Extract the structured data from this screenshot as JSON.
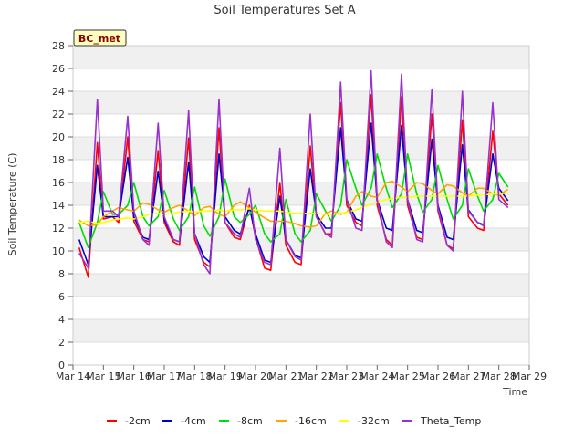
{
  "chart_data": {
    "type": "line",
    "title": "Soil Temperatures Set A",
    "xlabel": "Time",
    "ylabel": "Soil Temperature (C)",
    "badge": "BC_met",
    "ylim": [
      0,
      28
    ],
    "yticks": [
      0,
      2,
      4,
      6,
      8,
      10,
      12,
      14,
      16,
      18,
      20,
      22,
      24,
      26,
      28
    ],
    "xlim": [
      14,
      29
    ],
    "xticks": [
      14,
      15,
      16,
      17,
      18,
      19,
      20,
      21,
      22,
      23,
      24,
      25,
      26,
      27,
      28,
      29
    ],
    "xtick_labels": [
      "Mar 14",
      "Mar 15",
      "Mar 16",
      "Mar 17",
      "Mar 18",
      "Mar 19",
      "Mar 20",
      "Mar 21",
      "Mar 22",
      "Mar 23",
      "Mar 24",
      "Mar 25",
      "Mar 26",
      "Mar 27",
      "Mar 28",
      "Mar 29"
    ],
    "grid": true,
    "legend_position": "bottom",
    "series": [
      {
        "name": "-2cm",
        "color": "#ff0000",
        "x": [
          14.2,
          14.5,
          14.8,
          15.0,
          15.3,
          15.5,
          15.8,
          16.0,
          16.3,
          16.5,
          16.8,
          17.0,
          17.3,
          17.5,
          17.8,
          18.0,
          18.3,
          18.5,
          18.8,
          19.0,
          19.3,
          19.5,
          19.8,
          20.0,
          20.3,
          20.5,
          20.8,
          21.0,
          21.3,
          21.5,
          21.8,
          22.0,
          22.3,
          22.5,
          22.8,
          23.0,
          23.3,
          23.5,
          23.8,
          24.0,
          24.3,
          24.5,
          24.8,
          25.0,
          25.3,
          25.5,
          25.8,
          26.0,
          26.3,
          26.5,
          26.8,
          27.0,
          27.3,
          27.5,
          27.8,
          28.0,
          28.3
        ],
        "y": [
          10.3,
          7.7,
          19.5,
          12.8,
          13.0,
          12.5,
          20.0,
          12.6,
          11.0,
          10.8,
          18.8,
          12.5,
          10.8,
          10.5,
          19.9,
          11.0,
          9.0,
          8.6,
          20.8,
          12.5,
          11.2,
          11.0,
          14.0,
          11.2,
          8.5,
          8.3,
          16.0,
          10.5,
          9.0,
          8.8,
          19.2,
          13.0,
          11.5,
          11.5,
          23.0,
          14.0,
          12.5,
          12.2,
          23.7,
          14.0,
          11.0,
          10.5,
          23.5,
          14.0,
          11.2,
          11.0,
          22.0,
          13.5,
          10.5,
          10.2,
          21.5,
          13.0,
          12.0,
          11.8,
          20.5,
          15.0,
          14.0
        ]
      },
      {
        "name": "-4cm",
        "color": "#0000cc",
        "x": [
          14.2,
          14.5,
          14.8,
          15.0,
          15.3,
          15.5,
          15.8,
          16.0,
          16.3,
          16.5,
          16.8,
          17.0,
          17.3,
          17.5,
          17.8,
          18.0,
          18.3,
          18.5,
          18.8,
          19.0,
          19.3,
          19.5,
          19.8,
          20.0,
          20.3,
          20.5,
          20.8,
          21.0,
          21.3,
          21.5,
          21.8,
          22.0,
          22.3,
          22.5,
          22.8,
          23.0,
          23.3,
          23.5,
          23.8,
          24.0,
          24.3,
          24.5,
          24.8,
          25.0,
          25.3,
          25.5,
          25.8,
          26.0,
          26.3,
          26.5,
          26.8,
          27.0,
          27.3,
          27.5,
          27.8,
          28.0,
          28.3
        ],
        "y": [
          11.0,
          8.8,
          17.5,
          13.0,
          13.0,
          13.0,
          18.2,
          13.0,
          11.2,
          11.0,
          17.0,
          12.8,
          11.0,
          10.8,
          17.8,
          11.5,
          9.5,
          9.0,
          18.5,
          13.0,
          11.8,
          11.5,
          13.8,
          11.5,
          9.2,
          9.0,
          14.8,
          11.0,
          9.6,
          9.4,
          17.2,
          13.2,
          12.0,
          12.0,
          20.8,
          14.5,
          12.8,
          12.6,
          21.2,
          14.5,
          12.0,
          11.8,
          21.0,
          14.5,
          11.8,
          11.6,
          19.8,
          14.0,
          11.2,
          11.0,
          19.3,
          13.6,
          12.5,
          12.3,
          18.5,
          15.5,
          14.4
        ]
      },
      {
        "name": "-8cm",
        "color": "#00dd00",
        "x": [
          14.2,
          14.5,
          14.8,
          15.0,
          15.3,
          15.5,
          15.8,
          16.0,
          16.3,
          16.5,
          16.8,
          17.0,
          17.3,
          17.5,
          17.8,
          18.0,
          18.3,
          18.5,
          18.8,
          19.0,
          19.3,
          19.5,
          19.8,
          20.0,
          20.3,
          20.5,
          20.8,
          21.0,
          21.3,
          21.5,
          21.8,
          22.0,
          22.3,
          22.5,
          22.8,
          23.0,
          23.3,
          23.5,
          23.8,
          24.0,
          24.3,
          24.5,
          24.8,
          25.0,
          25.3,
          25.5,
          25.8,
          26.0,
          26.3,
          26.5,
          26.8,
          27.0,
          27.3,
          27.5,
          27.8,
          28.0,
          28.3
        ],
        "y": [
          12.5,
          10.3,
          12.5,
          15.2,
          13.2,
          13.2,
          14.0,
          16.0,
          13.0,
          12.2,
          13.0,
          15.3,
          12.8,
          11.8,
          13.0,
          15.6,
          12.2,
          11.3,
          13.0,
          16.3,
          13.0,
          12.5,
          13.2,
          14.0,
          11.5,
          10.8,
          11.5,
          14.5,
          11.5,
          10.8,
          11.8,
          15.0,
          13.5,
          12.6,
          14.0,
          18.0,
          15.5,
          14.0,
          15.5,
          18.5,
          15.5,
          13.8,
          15.0,
          18.5,
          15.0,
          13.4,
          14.5,
          17.5,
          14.5,
          12.8,
          14.0,
          17.2,
          14.8,
          13.5,
          14.5,
          16.8,
          15.6
        ]
      },
      {
        "name": "-16cm",
        "color": "#ffa500",
        "x": [
          14.2,
          14.5,
          14.8,
          15.0,
          15.3,
          15.5,
          15.8,
          16.0,
          16.3,
          16.5,
          16.8,
          17.0,
          17.3,
          17.5,
          17.8,
          18.0,
          18.3,
          18.5,
          18.8,
          19.0,
          19.3,
          19.5,
          19.8,
          20.0,
          20.3,
          20.5,
          20.8,
          21.0,
          21.3,
          21.5,
          21.8,
          22.0,
          22.3,
          22.5,
          22.8,
          23.0,
          23.3,
          23.5,
          23.8,
          24.0,
          24.3,
          24.5,
          24.8,
          25.0,
          25.3,
          25.5,
          25.8,
          26.0,
          26.3,
          26.5,
          26.8,
          27.0,
          27.3,
          27.5,
          27.8,
          28.0,
          28.3
        ],
        "y": [
          12.7,
          12.2,
          12.3,
          13.0,
          13.5,
          13.8,
          13.6,
          13.5,
          14.2,
          14.1,
          13.6,
          13.4,
          13.8,
          14.0,
          13.5,
          13.1,
          13.8,
          13.9,
          13.2,
          13.0,
          14.0,
          14.3,
          13.8,
          13.4,
          12.9,
          12.6,
          12.6,
          12.6,
          12.4,
          12.2,
          12.1,
          12.2,
          13.3,
          13.5,
          13.2,
          13.4,
          14.8,
          15.2,
          14.8,
          14.7,
          16.0,
          16.1,
          15.6,
          15.2,
          16.0,
          15.9,
          15.3,
          15.0,
          15.8,
          15.7,
          15.1,
          14.8,
          15.5,
          15.5,
          15.0,
          14.9,
          15.4
        ]
      },
      {
        "name": "-32cm",
        "color": "#ffff00",
        "x": [
          14.2,
          14.5,
          14.8,
          15.0,
          15.3,
          15.5,
          15.8,
          16.0,
          16.3,
          16.5,
          16.8,
          17.0,
          17.3,
          17.5,
          17.8,
          18.0,
          18.3,
          18.5,
          18.8,
          19.0,
          19.3,
          19.5,
          19.8,
          20.0,
          20.3,
          20.5,
          20.8,
          21.0,
          21.3,
          21.5,
          21.8,
          22.0,
          22.3,
          22.5,
          22.8,
          23.0,
          23.3,
          23.5,
          23.8,
          24.0,
          24.3,
          24.5,
          24.8,
          25.0,
          25.3,
          25.5,
          25.8,
          26.0,
          26.3,
          26.5,
          26.8,
          27.0,
          27.3,
          27.5,
          27.8,
          28.0,
          28.3
        ],
        "y": [
          12.5,
          12.6,
          12.4,
          12.5,
          12.7,
          12.8,
          12.9,
          12.8,
          13.0,
          13.2,
          13.3,
          13.2,
          13.3,
          13.4,
          13.5,
          13.4,
          13.5,
          13.5,
          13.6,
          13.5,
          13.6,
          13.6,
          13.7,
          13.6,
          13.5,
          13.5,
          13.5,
          13.4,
          13.3,
          13.3,
          13.3,
          13.3,
          13.2,
          13.2,
          13.3,
          13.4,
          13.6,
          13.8,
          14.1,
          14.3,
          14.5,
          14.6,
          14.7,
          14.7,
          14.8,
          14.8,
          14.8,
          14.8,
          14.8,
          14.8,
          14.8,
          14.8,
          14.9,
          14.9,
          15.0,
          15.0,
          15.1
        ]
      },
      {
        "name": "Theta_Temp",
        "color": "#9932cc",
        "x": [
          14.2,
          14.5,
          14.8,
          15.0,
          15.3,
          15.5,
          15.8,
          16.0,
          16.3,
          16.5,
          16.8,
          17.0,
          17.3,
          17.5,
          17.8,
          18.0,
          18.3,
          18.5,
          18.8,
          19.0,
          19.3,
          19.5,
          19.8,
          20.0,
          20.3,
          20.5,
          20.8,
          21.0,
          21.3,
          21.5,
          21.8,
          22.0,
          22.3,
          22.5,
          22.8,
          23.0,
          23.3,
          23.5,
          23.8,
          24.0,
          24.3,
          24.5,
          24.8,
          25.0,
          25.3,
          25.5,
          25.8,
          26.0,
          26.3,
          26.5,
          26.8,
          27.0,
          27.3,
          27.5,
          27.8,
          28.0,
          28.3
        ],
        "y": [
          9.8,
          8.5,
          23.3,
          13.5,
          13.5,
          13.0,
          21.8,
          13.5,
          11.0,
          10.5,
          21.2,
          13.0,
          11.0,
          10.8,
          22.3,
          11.5,
          8.8,
          8.0,
          23.3,
          12.5,
          11.5,
          11.2,
          15.5,
          11.0,
          9.0,
          8.8,
          19.0,
          11.0,
          9.5,
          9.2,
          22.0,
          13.0,
          11.5,
          11.2,
          24.8,
          14.5,
          12.0,
          11.8,
          25.8,
          14.5,
          10.8,
          10.3,
          25.5,
          14.5,
          11.0,
          10.8,
          24.2,
          13.8,
          10.5,
          10.0,
          24.0,
          13.5,
          12.5,
          12.2,
          23.0,
          14.5,
          13.8
        ]
      }
    ]
  }
}
